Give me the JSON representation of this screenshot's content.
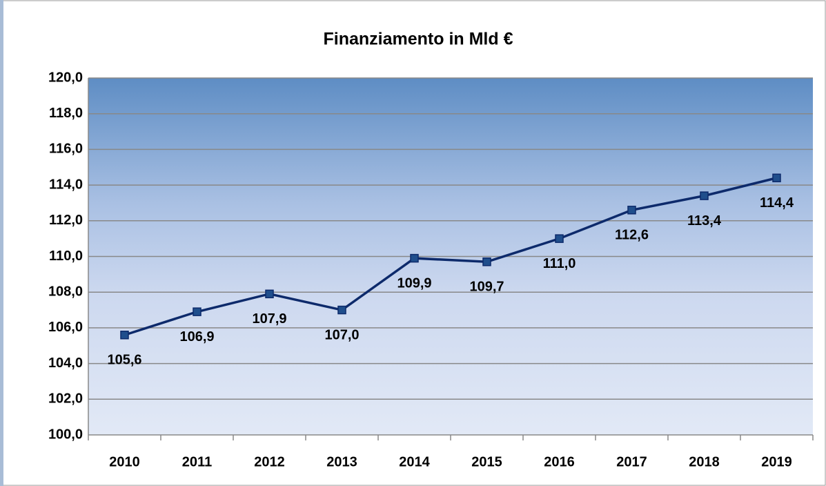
{
  "chart_data": {
    "type": "line",
    "title": "Finanziamento in Mld €",
    "categories": [
      "2010",
      "2011",
      "2012",
      "2013",
      "2014",
      "2015",
      "2016",
      "2017",
      "2018",
      "2019"
    ],
    "series": [
      {
        "name": "Finanziamento",
        "color": "#0d2a6b",
        "values": [
          105.6,
          106.9,
          107.9,
          107.0,
          109.9,
          109.7,
          111.0,
          112.6,
          113.4,
          114.4
        ],
        "value_labels": [
          "105,6",
          "106,9",
          "107,9",
          "107,0",
          "109,9",
          "109,7",
          "111,0",
          "112,6",
          "113,4",
          "114,4"
        ]
      }
    ],
    "ylim": [
      100,
      120
    ],
    "yticks": [
      {
        "value": 100,
        "label": "100,0"
      },
      {
        "value": 102,
        "label": "102,0"
      },
      {
        "value": 104,
        "label": "104,0"
      },
      {
        "value": 106,
        "label": "106,0"
      },
      {
        "value": 108,
        "label": "108,0"
      },
      {
        "value": 110,
        "label": "110,0"
      },
      {
        "value": 112,
        "label": "112,0"
      },
      {
        "value": 114,
        "label": "114,0"
      },
      {
        "value": 116,
        "label": "116,0"
      },
      {
        "value": 118,
        "label": "118,0"
      },
      {
        "value": 120,
        "label": "120,0"
      }
    ],
    "grid": true
  }
}
